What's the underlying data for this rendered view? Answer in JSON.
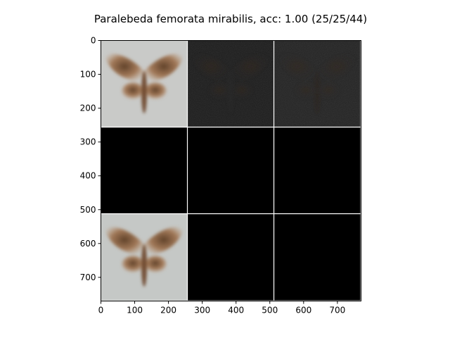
{
  "chart_data": {
    "type": "image-grid",
    "title": "Paralebeda femorata mirabilis, acc: 1.00 (25/25/44)",
    "xlim": [
      0,
      770
    ],
    "ylim": [
      770,
      0
    ],
    "x_ticks": [
      0,
      100,
      200,
      300,
      400,
      500,
      600,
      700
    ],
    "y_ticks": [
      0,
      100,
      200,
      300,
      400,
      500,
      600,
      700
    ],
    "grid": {
      "rows": 3,
      "cols": 3,
      "tile_size": 256
    },
    "tiles": [
      {
        "row": 0,
        "col": 0,
        "content": "moth",
        "background": "#c9cac8",
        "moth_color": "#8a5a36"
      },
      {
        "row": 0,
        "col": 1,
        "content": "faint-moth",
        "background": "#1c1c1c",
        "moth_color": "#2b2b2b"
      },
      {
        "row": 0,
        "col": 2,
        "content": "faint-moth",
        "background": "#232323",
        "moth_color": "#2e2118"
      },
      {
        "row": 1,
        "col": 0,
        "content": "blank",
        "background": "#000000"
      },
      {
        "row": 1,
        "col": 1,
        "content": "blank",
        "background": "#000000"
      },
      {
        "row": 1,
        "col": 2,
        "content": "blank",
        "background": "#000000"
      },
      {
        "row": 2,
        "col": 0,
        "content": "moth",
        "background": "#c5c8c6",
        "moth_color": "#8a5a36"
      },
      {
        "row": 2,
        "col": 1,
        "content": "blank",
        "background": "#000000"
      },
      {
        "row": 2,
        "col": 2,
        "content": "blank",
        "background": "#000000"
      }
    ]
  }
}
